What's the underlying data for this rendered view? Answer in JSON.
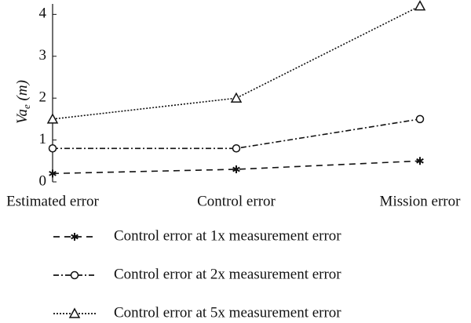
{
  "chart_data": {
    "type": "line",
    "ylabel": "Va",
    "ylabel_sub": "e",
    "ylabel_unit": "(m)",
    "categories": [
      "Estimated error",
      "Control error",
      "Mission error"
    ],
    "ylim": [
      0,
      4.25
    ],
    "yticks": [
      0,
      1,
      2,
      3,
      4
    ],
    "series": [
      {
        "name": "Control error at 1x measurement error",
        "color": "#111111",
        "marker": "star",
        "dash": "8,6",
        "values": [
          0.2,
          0.3,
          0.5
        ]
      },
      {
        "name": "Control error at 2x measurement error",
        "color": "#111111",
        "marker": "circle",
        "dash": "7,3,2,3",
        "values": [
          0.8,
          0.8,
          1.5
        ]
      },
      {
        "name": "Control error at 5x measurement error",
        "color": "#111111",
        "marker": "triangle",
        "dash": "2,2",
        "values": [
          1.5,
          2.0,
          4.2
        ]
      }
    ]
  }
}
